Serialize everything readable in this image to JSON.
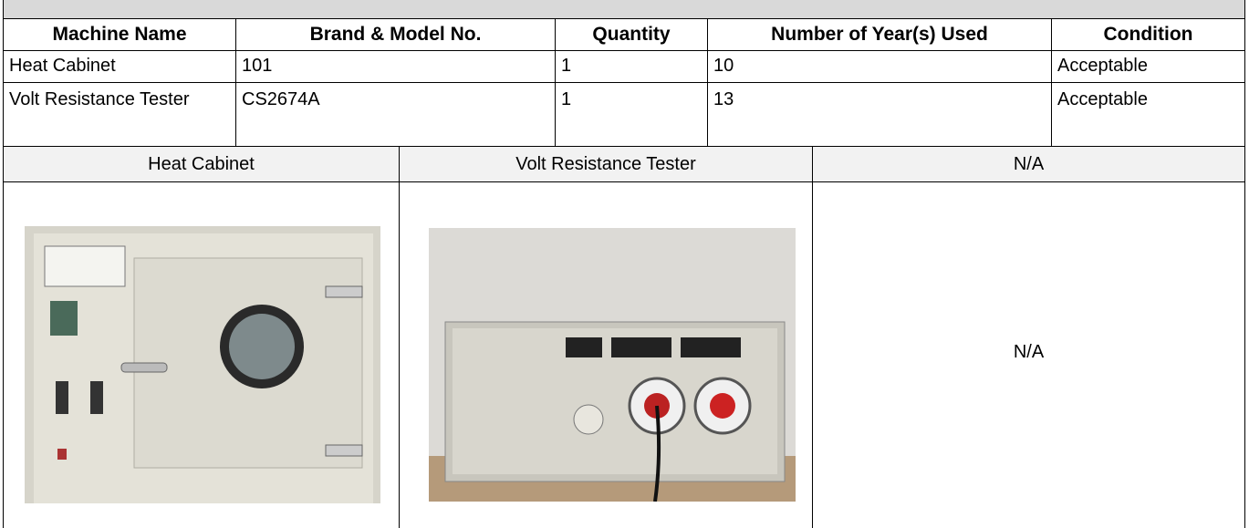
{
  "table": {
    "columns": [
      "Machine Name",
      "Brand & Model No.",
      "Quantity",
      "Number of Year(s) Used",
      "Condition"
    ],
    "rows": [
      [
        "Heat Cabinet",
        "101",
        "1",
        "10",
        "Acceptable"
      ],
      [
        "Volt Resistance Tester",
        "CS2674A",
        "1",
        "13",
        "Acceptable"
      ]
    ]
  },
  "photos": {
    "captions": [
      "Heat Cabinet",
      "Volt Resistance Tester",
      "N/A"
    ],
    "placeholder": "N/A"
  }
}
